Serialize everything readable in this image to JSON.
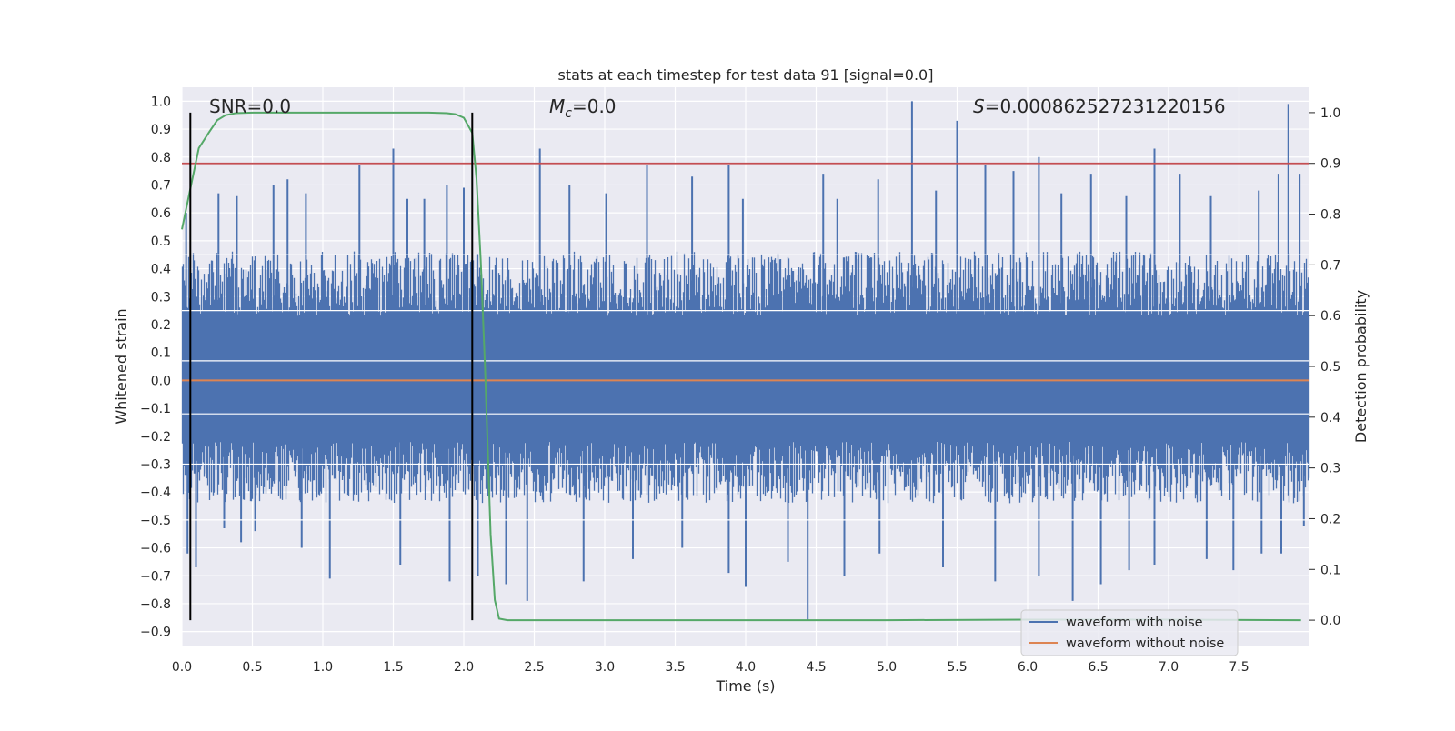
{
  "chart_data": {
    "type": "line",
    "title": "stats at each timestep for test data 91 [signal=0.0]",
    "xlabel": "Time (s)",
    "ylabel": "Whitened strain",
    "y2label": "Detection probability",
    "xlim": [
      0.0,
      8.0
    ],
    "ylim": [
      -0.95,
      1.05
    ],
    "y2lim": [
      -0.05,
      1.05
    ],
    "x_ticks": [
      "0.0",
      "0.5",
      "1.0",
      "1.5",
      "2.0",
      "2.5",
      "3.0",
      "3.5",
      "4.0",
      "4.5",
      "5.0",
      "5.5",
      "6.0",
      "6.5",
      "7.0",
      "7.5"
    ],
    "y_ticks": [
      "-0.9",
      "-0.8",
      "-0.7",
      "-0.6",
      "-0.5",
      "-0.4",
      "-0.3",
      "-0.2",
      "-0.1",
      "0.0",
      "0.1",
      "0.2",
      "0.3",
      "0.4",
      "0.5",
      "0.6",
      "0.7",
      "0.8",
      "0.9",
      "1.0"
    ],
    "y2_ticks": [
      "0.0",
      "0.1",
      "0.2",
      "0.3",
      "0.4",
      "0.5",
      "0.6",
      "0.7",
      "0.8",
      "0.9",
      "1.0"
    ],
    "grid": true,
    "legend_position": "lower right",
    "colors": {
      "noise": "#4c72b0",
      "clean": "#dd8452",
      "probability": "#55a868",
      "threshold": "#c44e52",
      "marker": "#000000",
      "plot_bg": "#eaeaf2",
      "grid": "#ffffff"
    },
    "annotations": {
      "snr": "SNR=0.0",
      "mc_symbol": "M",
      "mc_subscript": "c",
      "mc_value": "=0.0",
      "s_symbol": "S",
      "s_value": "=0.000862527231220156"
    },
    "legend": {
      "noise_label": "waveform with noise",
      "clean_label": "waveform without noise"
    },
    "series": [
      {
        "name": "waveform with noise",
        "envelope": {
          "typical_upper": 0.42,
          "typical_lower": -0.4,
          "peaks": [
            [
              0.03,
              0.6
            ],
            [
              0.26,
              0.67
            ],
            [
              0.39,
              0.66
            ],
            [
              0.65,
              0.7
            ],
            [
              0.75,
              0.72
            ],
            [
              0.88,
              0.67
            ],
            [
              1.26,
              0.77
            ],
            [
              1.5,
              0.83
            ],
            [
              1.6,
              0.65
            ],
            [
              1.72,
              0.65
            ],
            [
              1.88,
              0.7
            ],
            [
              2.0,
              0.69
            ],
            [
              2.54,
              0.83
            ],
            [
              2.75,
              0.7
            ],
            [
              3.01,
              0.67
            ],
            [
              3.3,
              0.77
            ],
            [
              3.62,
              0.73
            ],
            [
              3.88,
              0.77
            ],
            [
              3.98,
              0.65
            ],
            [
              4.55,
              0.74
            ],
            [
              4.65,
              0.65
            ],
            [
              4.94,
              0.72
            ],
            [
              5.18,
              1.0
            ],
            [
              5.35,
              0.68
            ],
            [
              5.5,
              0.93
            ],
            [
              5.7,
              0.77
            ],
            [
              5.9,
              0.75
            ],
            [
              6.08,
              0.8
            ],
            [
              6.24,
              0.67
            ],
            [
              6.45,
              0.74
            ],
            [
              6.7,
              0.66
            ],
            [
              6.9,
              0.83
            ],
            [
              7.08,
              0.74
            ],
            [
              7.3,
              0.66
            ],
            [
              7.64,
              0.68
            ],
            [
              7.78,
              0.74
            ],
            [
              7.93,
              0.74
            ],
            [
              7.85,
              0.99
            ]
          ],
          "troughs": [
            [
              0.04,
              -0.62
            ],
            [
              0.1,
              -0.67
            ],
            [
              0.3,
              -0.53
            ],
            [
              0.42,
              -0.58
            ],
            [
              0.52,
              -0.54
            ],
            [
              0.85,
              -0.6
            ],
            [
              1.05,
              -0.71
            ],
            [
              1.55,
              -0.66
            ],
            [
              1.9,
              -0.72
            ],
            [
              2.1,
              -0.7
            ],
            [
              2.3,
              -0.73
            ],
            [
              2.45,
              -0.79
            ],
            [
              2.85,
              -0.72
            ],
            [
              3.2,
              -0.64
            ],
            [
              3.55,
              -0.6
            ],
            [
              3.88,
              -0.69
            ],
            [
              4.0,
              -0.74
            ],
            [
              4.3,
              -0.65
            ],
            [
              4.44,
              -0.86
            ],
            [
              4.7,
              -0.7
            ],
            [
              4.95,
              -0.62
            ],
            [
              5.4,
              -0.67
            ],
            [
              5.77,
              -0.72
            ],
            [
              6.08,
              -0.7
            ],
            [
              6.32,
              -0.79
            ],
            [
              6.52,
              -0.73
            ],
            [
              6.72,
              -0.68
            ],
            [
              6.9,
              -0.66
            ],
            [
              7.27,
              -0.64
            ],
            [
              7.46,
              -0.68
            ],
            [
              7.66,
              -0.62
            ],
            [
              7.8,
              -0.62
            ],
            [
              7.96,
              -0.52
            ]
          ]
        }
      },
      {
        "name": "waveform without noise",
        "x": [
          0.0,
          8.0
        ],
        "y": [
          0.0,
          0.0
        ]
      },
      {
        "name": "detection probability",
        "axis": "right",
        "x": [
          0.0,
          0.06,
          0.12,
          0.19,
          0.25,
          0.31,
          0.38,
          0.5,
          1.0,
          1.5,
          1.75,
          1.88,
          1.94,
          2.0,
          2.06,
          2.09,
          2.12,
          2.15,
          2.19,
          2.22,
          2.25,
          2.31,
          2.5,
          3.0,
          4.0,
          5.0,
          6.0,
          7.0,
          7.94
        ],
        "y": [
          0.77,
          0.85,
          0.93,
          0.96,
          0.985,
          0.995,
          0.999,
          1.0,
          1.0,
          1.0,
          1.0,
          0.999,
          0.997,
          0.99,
          0.96,
          0.87,
          0.71,
          0.5,
          0.17,
          0.04,
          0.003,
          0.0,
          0.0,
          0.0,
          0.0,
          0.0,
          0.001,
          0.001,
          0.0
        ]
      }
    ],
    "threshold_probability": 0.9,
    "vertical_markers_x": [
      0.06,
      2.06
    ]
  }
}
